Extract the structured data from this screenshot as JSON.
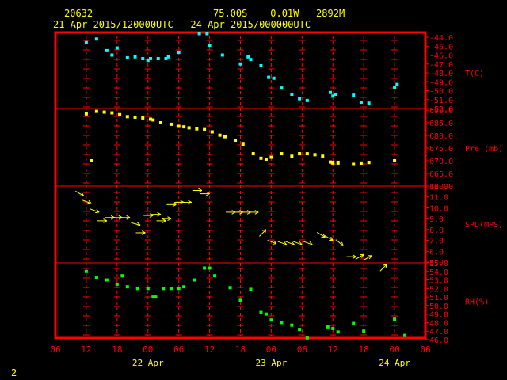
{
  "header": {
    "station": "20632",
    "location": "75.00S    0.01W   2892M",
    "period": "21 Apr 2015/120000UTC - 24 Apr 2015/000000UTC"
  },
  "footer": {
    "page": "2"
  },
  "colors": {
    "frame": "#ff0000",
    "grid": "#ff0000",
    "axis_text": "#ff0000",
    "header_text": "#ffff00",
    "temperature": "#00ffff",
    "pressure": "#ffff00",
    "wind": "#ffff00",
    "humidity": "#00ff00"
  },
  "chart_data": {
    "type": "scatter",
    "x_axis": {
      "unit": "hours since 21 Apr 2015 06 UTC",
      "range": [
        0,
        72
      ],
      "tick_labels": [
        "06",
        "12",
        "18",
        "00",
        "06",
        "12",
        "18",
        "00",
        "06",
        "12",
        "18",
        "00",
        "06"
      ],
      "day_labels": [
        "22 Apr",
        "23 Apr",
        "24 Apr"
      ]
    },
    "panels": [
      {
        "name": "temperature",
        "label": "T(C)",
        "ylim": [
          -52,
          -44
        ],
        "tick_labels": [
          "-44.0",
          "-45.0",
          "-46.0",
          "-47.0",
          "-48.0",
          "-49.0",
          "-50.0",
          "-51.0",
          "-52.0"
        ],
        "points": [
          [
            6,
            -44.6
          ],
          [
            8,
            -44.2
          ],
          [
            10,
            -45.5
          ],
          [
            11,
            -46.0
          ],
          [
            12,
            -45.2
          ],
          [
            14,
            -46.3
          ],
          [
            15.5,
            -46.2
          ],
          [
            17,
            -46.4
          ],
          [
            18,
            -46.6
          ],
          [
            18.5,
            -46.4
          ],
          [
            20,
            -46.4
          ],
          [
            21.5,
            -46.4
          ],
          [
            22,
            -46.2
          ],
          [
            24,
            -45.7
          ],
          [
            28,
            -43.6
          ],
          [
            29.5,
            -43.6
          ],
          [
            30,
            -44.9
          ],
          [
            32.5,
            -46.0
          ],
          [
            36,
            -47.0
          ],
          [
            37.5,
            -46.2
          ],
          [
            38,
            -46.5
          ],
          [
            40,
            -47.2
          ],
          [
            41.5,
            -48.5
          ],
          [
            42.5,
            -48.6
          ],
          [
            44,
            -49.7
          ],
          [
            46,
            -50.4
          ],
          [
            47.5,
            -50.9
          ],
          [
            49,
            -51.1
          ],
          [
            53.5,
            -50.2
          ],
          [
            54,
            -50.6
          ],
          [
            54.5,
            -50.4
          ],
          [
            58,
            -50.5
          ],
          [
            59.5,
            -51.3
          ],
          [
            61,
            -51.4
          ],
          [
            66,
            -49.6
          ],
          [
            66.5,
            -49.3
          ]
        ]
      },
      {
        "name": "pressure",
        "label": "Pre (mb)",
        "ylim": [
          660,
          690
        ],
        "tick_labels": [
          "690.0",
          "685.0",
          "680.0",
          "675.0",
          "670.0",
          "665.0",
          "660.0"
        ],
        "points": [
          [
            6,
            688.5
          ],
          [
            8,
            689.5
          ],
          [
            9.5,
            689.2
          ],
          [
            11,
            688.9
          ],
          [
            12.5,
            688.2
          ],
          [
            14,
            687.4
          ],
          [
            15.5,
            687.2
          ],
          [
            17,
            686.9
          ],
          [
            18.5,
            686.4
          ],
          [
            19,
            686.1
          ],
          [
            20.5,
            685.0
          ],
          [
            22.5,
            684.4
          ],
          [
            24,
            683.6
          ],
          [
            25,
            683.4
          ],
          [
            26,
            683.0
          ],
          [
            27.5,
            682.6
          ],
          [
            29,
            682.3
          ],
          [
            30.5,
            681.4
          ],
          [
            32,
            680.1
          ],
          [
            33,
            679.5
          ],
          [
            35,
            677.9
          ],
          [
            36.5,
            676.5
          ],
          [
            38.5,
            672.8
          ],
          [
            40,
            671.0
          ],
          [
            41,
            670.6
          ],
          [
            42,
            671.4
          ],
          [
            44,
            672.8
          ],
          [
            46,
            671.8
          ],
          [
            47.5,
            672.8
          ],
          [
            49,
            672.8
          ],
          [
            50.5,
            672.4
          ],
          [
            52,
            671.8
          ],
          [
            53.5,
            669.5
          ],
          [
            54,
            669.1
          ],
          [
            55,
            669.1
          ],
          [
            58,
            668.6
          ],
          [
            59.5,
            668.8
          ],
          [
            61,
            669.3
          ],
          [
            66,
            670.0
          ],
          [
            7,
            670.0
          ]
        ]
      },
      {
        "name": "wind",
        "label": "SPD(MPS)",
        "ylim": [
          5,
          12
        ],
        "tick_labels": [
          "12.0",
          "11.0",
          "10.0",
          "9.0",
          "8.0",
          "7.0",
          "6.0",
          "5.0"
        ],
        "barbs": [
          [
            5.5,
            11.1,
            300
          ],
          [
            7,
            10.4,
            290
          ],
          [
            8.5,
            9.6,
            290
          ],
          [
            10,
            8.8,
            270
          ],
          [
            11.5,
            9.1,
            270
          ],
          [
            13,
            9.1,
            270
          ],
          [
            14.5,
            9.1,
            270
          ],
          [
            16.5,
            8.4,
            285
          ],
          [
            17.5,
            7.7,
            270
          ],
          [
            19,
            9.3,
            270
          ],
          [
            20.5,
            9.4,
            270
          ],
          [
            21.5,
            8.8,
            270
          ],
          [
            22.5,
            9.0,
            270
          ],
          [
            23.5,
            10.3,
            270
          ],
          [
            25,
            10.5,
            270
          ],
          [
            26.5,
            10.5,
            270
          ],
          [
            28.5,
            11.6,
            270
          ],
          [
            30,
            11.3,
            270
          ],
          [
            35,
            9.6,
            270
          ],
          [
            36.5,
            9.6,
            270
          ],
          [
            38,
            9.6,
            270
          ],
          [
            39.5,
            9.6,
            270
          ],
          [
            41,
            8.0,
            225
          ],
          [
            43,
            6.7,
            290
          ],
          [
            45,
            6.6,
            290
          ],
          [
            46.5,
            6.6,
            290
          ],
          [
            48,
            6.6,
            290
          ],
          [
            50,
            6.6,
            290
          ],
          [
            52.5,
            7.3,
            300
          ],
          [
            54,
            7.0,
            300
          ],
          [
            56,
            6.5,
            310
          ],
          [
            58.5,
            5.5,
            270
          ],
          [
            60,
            5.7,
            240
          ],
          [
            61.5,
            5.6,
            240
          ],
          [
            64.5,
            4.8,
            225
          ]
        ]
      },
      {
        "name": "humidity",
        "label": "RH(%)",
        "ylim": [
          46,
          55
        ],
        "tick_labels": [
          "55.0",
          "54.0",
          "53.0",
          "52.0",
          "51.0",
          "50.0",
          "49.0",
          "48.0",
          "47.0",
          "46.0"
        ],
        "points": [
          [
            6,
            54.0
          ],
          [
            8,
            53.3
          ],
          [
            10,
            53.0
          ],
          [
            12,
            52.5
          ],
          [
            13,
            53.5
          ],
          [
            14,
            52.2
          ],
          [
            16,
            52.0
          ],
          [
            18,
            52.0
          ],
          [
            19,
            51.0
          ],
          [
            19.5,
            51.0
          ],
          [
            21,
            52.0
          ],
          [
            22.5,
            52.0
          ],
          [
            24,
            52.0
          ],
          [
            25,
            52.2
          ],
          [
            27,
            53.0
          ],
          [
            29,
            54.4
          ],
          [
            30,
            54.4
          ],
          [
            31,
            53.5
          ],
          [
            34,
            52.1
          ],
          [
            36,
            50.6
          ],
          [
            38,
            51.9
          ],
          [
            40,
            49.2
          ],
          [
            41,
            49.0
          ],
          [
            42,
            48.3
          ],
          [
            44,
            48.0
          ],
          [
            46,
            47.7
          ],
          [
            47.5,
            47.2
          ],
          [
            49,
            46.2
          ],
          [
            53,
            47.5
          ],
          [
            54,
            47.3
          ],
          [
            55,
            46.9
          ],
          [
            58,
            47.9
          ],
          [
            60,
            47.0
          ],
          [
            66,
            48.4
          ],
          [
            68,
            46.5
          ]
        ]
      }
    ]
  }
}
